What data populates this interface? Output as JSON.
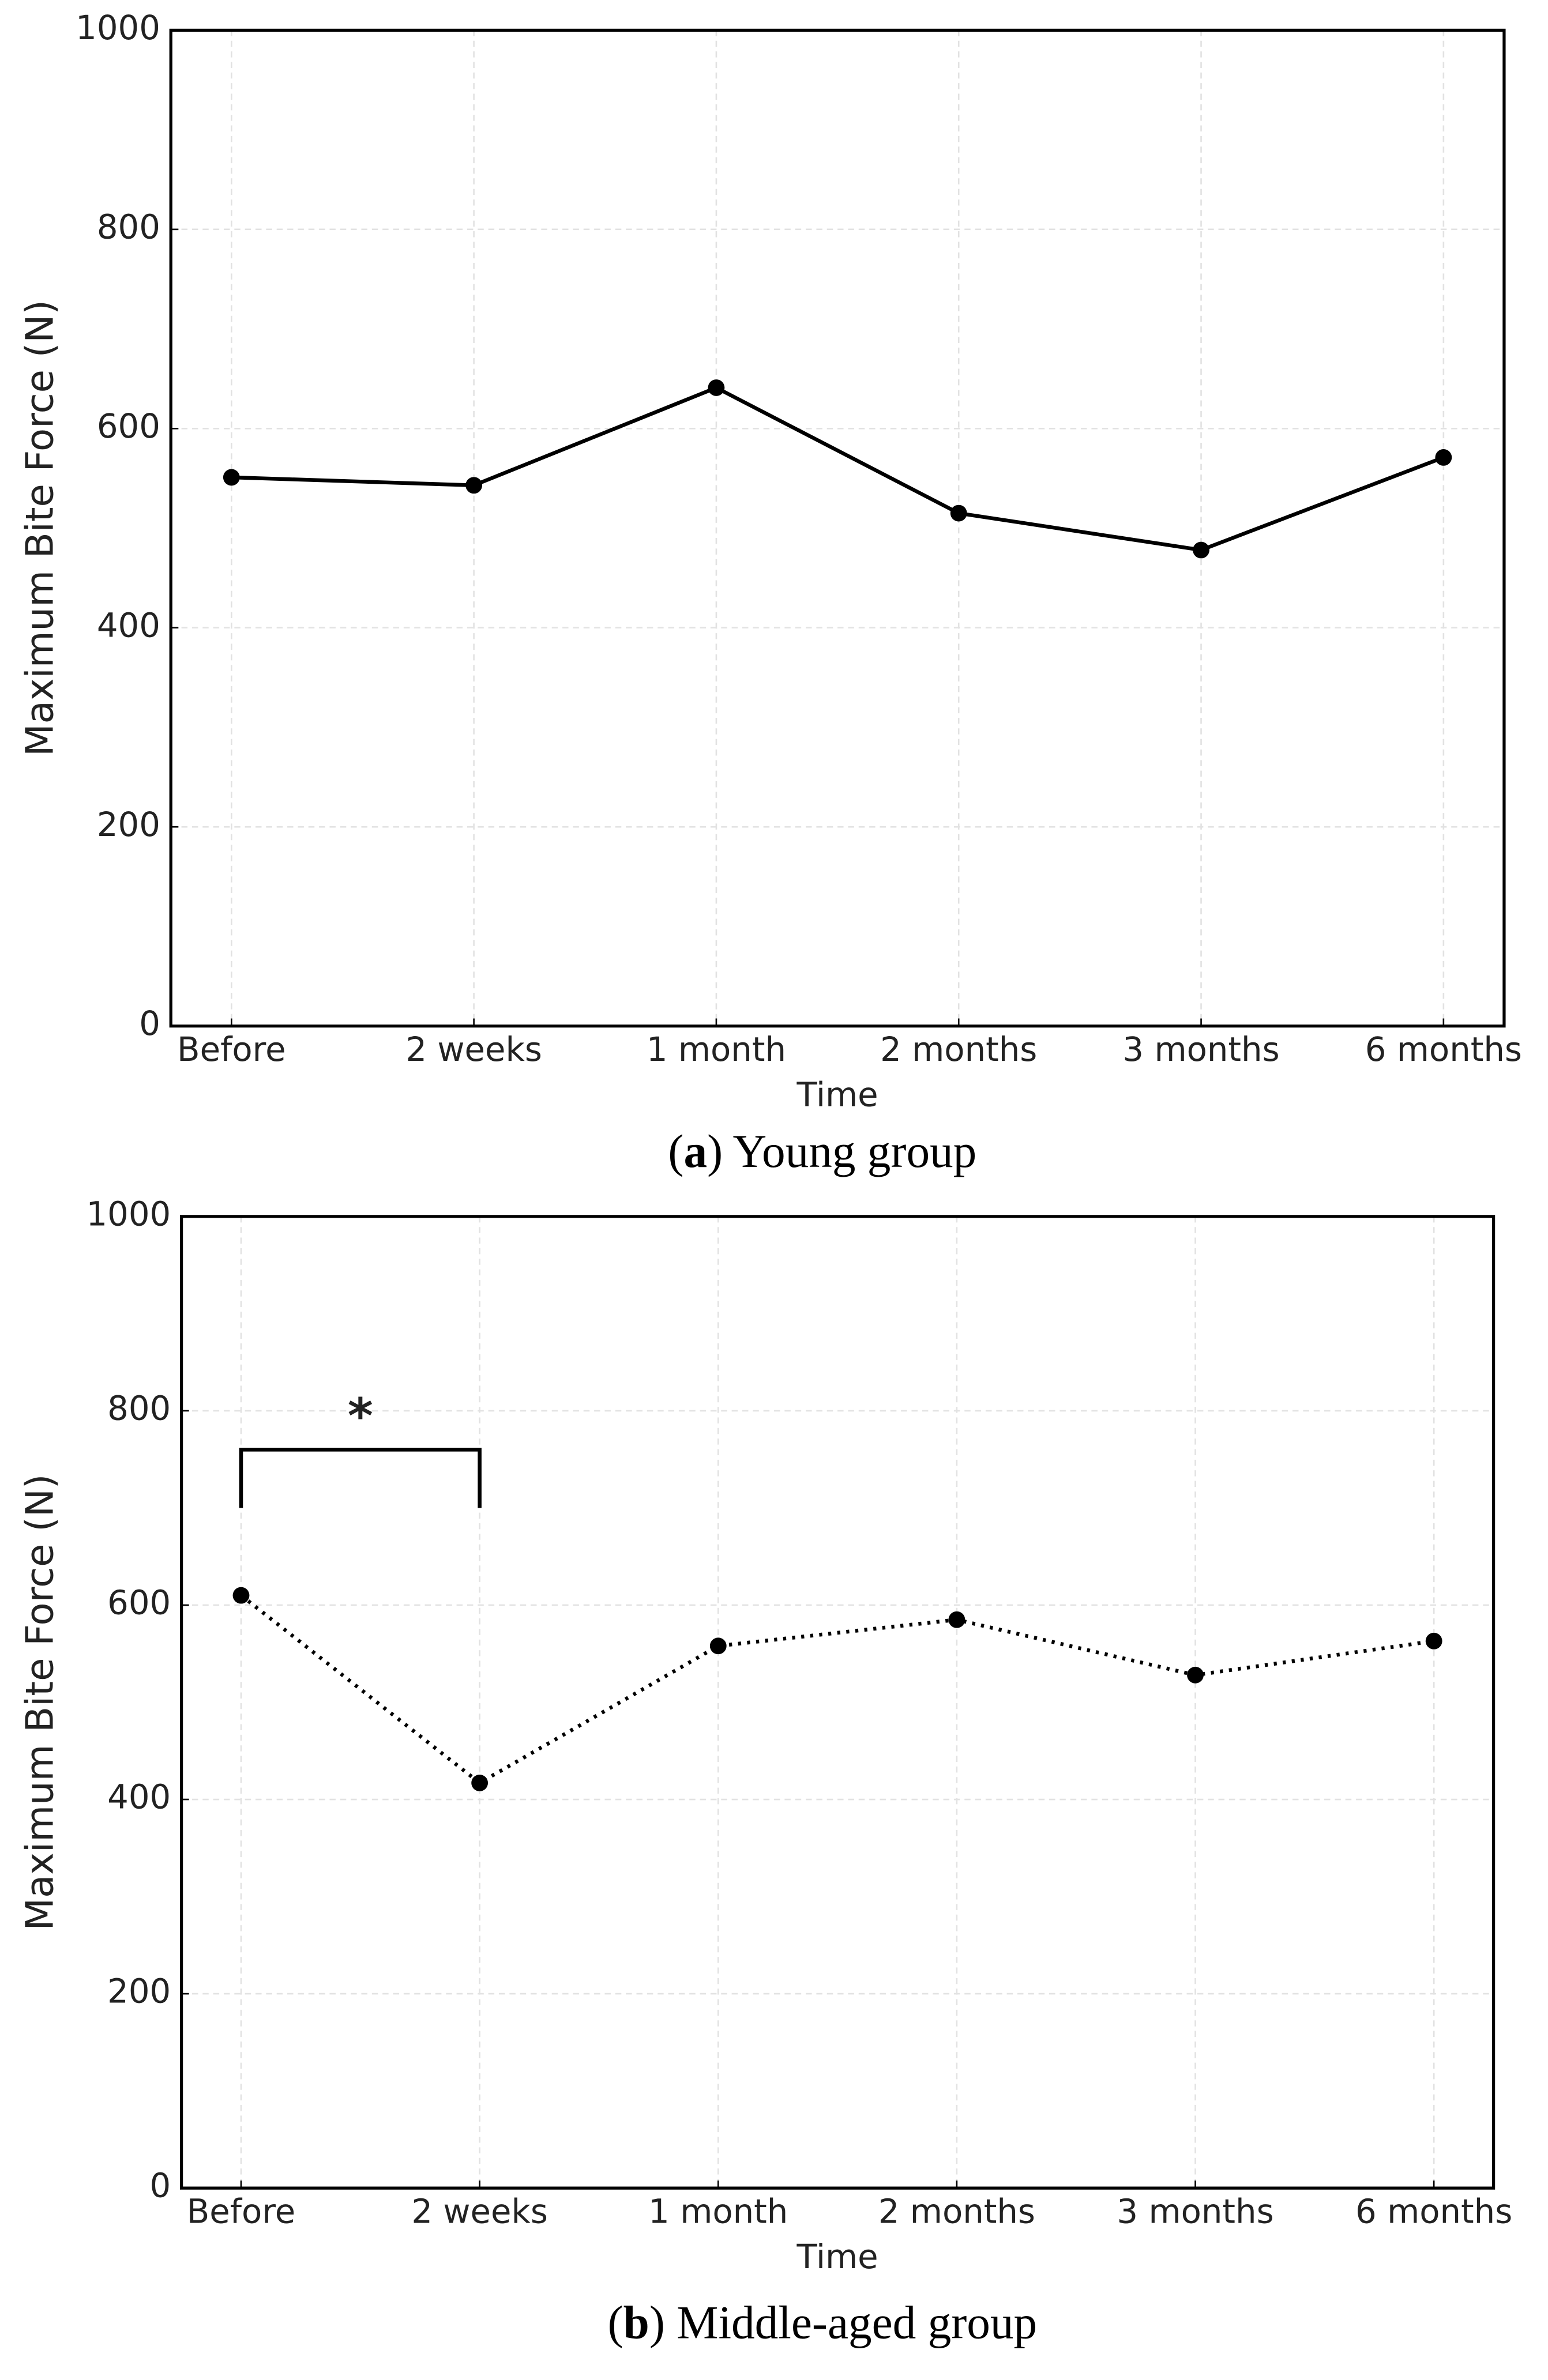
{
  "chart_data": [
    {
      "type": "line",
      "caption": [
        "(",
        "a",
        ") Young group"
      ],
      "xlabel": "Time",
      "ylabel": "Maximum Bite Force (N)",
      "categories": [
        "Before",
        "2 weeks",
        "1 month",
        "2 months",
        "3 months",
        "6 months"
      ],
      "values": [
        551,
        543,
        641,
        515,
        478,
        571
      ],
      "color": "#000000",
      "linestyle": "solid",
      "ylim": [
        0,
        1000
      ],
      "yticks": [
        0,
        200,
        400,
        600,
        800,
        1000
      ],
      "grid": true
    },
    {
      "type": "line",
      "caption": [
        "(",
        "b",
        ") Middle-aged group"
      ],
      "xlabel": "Time",
      "ylabel": "Maximum Bite Force (N)",
      "categories": [
        "Before",
        "2 weeks",
        "1 month",
        "2 months",
        "3 months",
        "6 months"
      ],
      "values": [
        610,
        417,
        558,
        585,
        528,
        563
      ],
      "color": "#000000",
      "linestyle": "dotted",
      "ylim": [
        0,
        1000
      ],
      "yticks": [
        0,
        200,
        400,
        600,
        800,
        1000
      ],
      "grid": true,
      "annotation": {
        "text": "*",
        "from": "Before",
        "to": "2 weeks",
        "y": 760,
        "y_end": 700
      }
    }
  ]
}
